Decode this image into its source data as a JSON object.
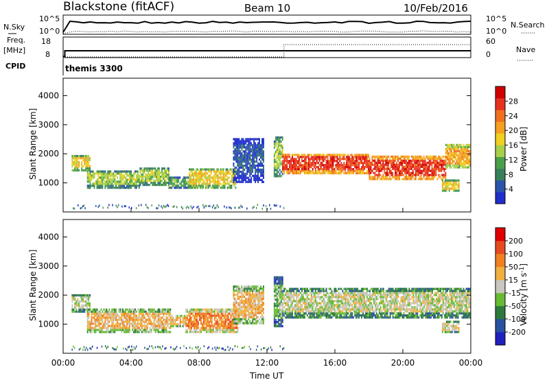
{
  "header": {
    "station": "Blackstone (fitACF)",
    "beam": "Beam 10",
    "date": "10/Feb/2016"
  },
  "top_panels": {
    "nsky_label": "N.Sky",
    "nsearch_label": "N.Search",
    "noise_ticks": [
      "10^5",
      "10^0"
    ],
    "freq_label_1": "Freq.",
    "freq_label_2": "[MHz]",
    "freq_ticks": [
      "18",
      "8"
    ],
    "nave_label": "Nave",
    "nave_ticks": [
      "60",
      "0"
    ],
    "cpid_label": "CPID",
    "cpid_value": "themis 3300"
  },
  "colors": {
    "power": [
      "#1f2ecc",
      "#2a55a8",
      "#3a7f5c",
      "#4aa04a",
      "#a8d04a",
      "#f0d020",
      "#f5a020",
      "#f07020",
      "#e83020",
      "#d00000"
    ],
    "velocity": [
      "#2020c0",
      "#2a50a0",
      "#2c7a3c",
      "#66bb33",
      "#c8c8c0",
      "#f0b040",
      "#f08020",
      "#e84a20",
      "#e00000"
    ]
  },
  "chart_data": [
    {
      "type": "heatmap",
      "name": "power",
      "ylabel": "Slant Range [km]",
      "yticks": [
        1000,
        2000,
        3000,
        4000
      ],
      "ylim": [
        0,
        4600
      ],
      "colorbar_label": "Power [dB]",
      "colorbar_ticks": [
        "28",
        "24",
        "20",
        "16",
        "12",
        "8",
        "4"
      ],
      "bands": [
        {
          "t0": 0.5,
          "t1": 1.6,
          "r0": 1400,
          "r1": 1900,
          "level": 5
        },
        {
          "t0": 1.4,
          "t1": 4.5,
          "r0": 800,
          "r1": 1400,
          "level": 4
        },
        {
          "t0": 4.5,
          "t1": 6.2,
          "r0": 900,
          "r1": 1500,
          "level": 4
        },
        {
          "t0": 6.2,
          "t1": 7.4,
          "r0": 800,
          "r1": 1200,
          "level": 3
        },
        {
          "t0": 7.4,
          "t1": 10.2,
          "r0": 800,
          "r1": 1500,
          "level": 5
        },
        {
          "t0": 10.0,
          "t1": 11.8,
          "r0": 1000,
          "r1": 2500,
          "level": 1
        },
        {
          "t0": 12.4,
          "t1": 12.9,
          "r0": 1200,
          "r1": 2600,
          "level": 4
        },
        {
          "t0": 12.9,
          "t1": 18.0,
          "r0": 1300,
          "r1": 2000,
          "level": 8
        },
        {
          "t0": 18.0,
          "t1": 22.5,
          "r0": 1100,
          "r1": 1900,
          "level": 8
        },
        {
          "t0": 22.5,
          "t1": 24.0,
          "r0": 1500,
          "r1": 2300,
          "level": 6
        },
        {
          "t0": 22.3,
          "t1": 23.3,
          "r0": 700,
          "r1": 1100,
          "level": 5
        }
      ]
    },
    {
      "type": "heatmap",
      "name": "velocity",
      "ylabel": "Slant Range [km]",
      "xlabel": "Time UT",
      "xticks": [
        "00:00",
        "04:00",
        "08:00",
        "12:00",
        "16:00",
        "20:00",
        "00:00"
      ],
      "yticks": [
        1000,
        2000,
        3000,
        4000
      ],
      "ylim": [
        0,
        4600
      ],
      "colorbar_label": "Velocity [m s",
      "colorbar_label_sup": "-1",
      "colorbar_label_end": "]",
      "colorbar_ticks": [
        "200",
        "100",
        "50",
        "15",
        "-15",
        "-50",
        "-100",
        "-200"
      ],
      "bands": [
        {
          "t0": 0.5,
          "t1": 1.6,
          "r0": 1400,
          "r1": 2000,
          "level": 4
        },
        {
          "t0": 1.4,
          "t1": 6.3,
          "r0": 700,
          "r1": 1500,
          "level": 5
        },
        {
          "t0": 6.3,
          "t1": 7.2,
          "r0": 900,
          "r1": 1300,
          "level": 5
        },
        {
          "t0": 7.2,
          "t1": 10.3,
          "r0": 700,
          "r1": 1500,
          "level": 6
        },
        {
          "t0": 10.0,
          "t1": 11.8,
          "r0": 1000,
          "r1": 2300,
          "level": 5
        },
        {
          "t0": 12.4,
          "t1": 12.9,
          "r0": 900,
          "r1": 2600,
          "level": 3
        },
        {
          "t0": 12.9,
          "t1": 24.0,
          "r0": 1200,
          "r1": 2200,
          "level": 4
        },
        {
          "t0": 22.3,
          "t1": 23.3,
          "r0": 700,
          "r1": 1100,
          "level": 4
        }
      ]
    }
  ]
}
